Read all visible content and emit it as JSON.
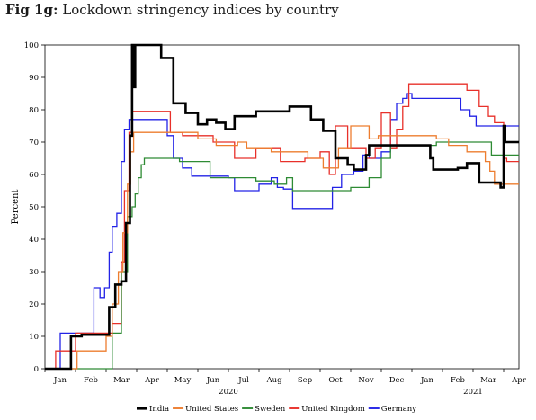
{
  "figure": {
    "label": "Fig 1g:",
    "title": "Lockdown stringency indices by country"
  },
  "chart_data": {
    "type": "line",
    "title": "Lockdown stringency indices by country",
    "xlabel": "",
    "ylabel": "Percent",
    "ylim": [
      0,
      100
    ],
    "yticks": [
      0,
      10,
      20,
      30,
      40,
      50,
      60,
      70,
      80,
      90,
      100
    ],
    "xlim": [
      0,
      15.5
    ],
    "xticks": [
      {
        "label": "Jan",
        "x": 0.5
      },
      {
        "label": "Feb",
        "x": 1.5
      },
      {
        "label": "Mar",
        "x": 2.5
      },
      {
        "label": "Apr",
        "x": 3.5
      },
      {
        "label": "May",
        "x": 4.5
      },
      {
        "label": "Jun",
        "x": 5.5
      },
      {
        "label": "Jul",
        "x": 6.5
      },
      {
        "label": "Aug",
        "x": 7.5
      },
      {
        "label": "Sep",
        "x": 8.5
      },
      {
        "label": "Oct",
        "x": 9.5
      },
      {
        "label": "Nov",
        "x": 10.5
      },
      {
        "label": "Dec",
        "x": 11.5
      },
      {
        "label": "Jan",
        "x": 12.5
      },
      {
        "label": "Feb",
        "x": 13.5
      },
      {
        "label": "Mar",
        "x": 14.5
      },
      {
        "label": "Apr",
        "x": 15.5
      }
    ],
    "year_labels": [
      {
        "label": "2020",
        "x": 6
      },
      {
        "label": "2021",
        "x": 14
      }
    ],
    "grid": false,
    "legend": "bottom",
    "series": [
      {
        "name": "India",
        "color": "#000000",
        "width": 2.6,
        "points": [
          [
            0,
            0
          ],
          [
            0.85,
            0
          ],
          [
            0.85,
            10
          ],
          [
            1.2,
            10
          ],
          [
            1.2,
            10.5
          ],
          [
            2.1,
            10.5
          ],
          [
            2.1,
            19
          ],
          [
            2.3,
            19
          ],
          [
            2.3,
            26
          ],
          [
            2.5,
            26
          ],
          [
            2.5,
            27
          ],
          [
            2.65,
            27
          ],
          [
            2.65,
            45
          ],
          [
            2.78,
            45
          ],
          [
            2.78,
            72
          ],
          [
            2.85,
            72
          ],
          [
            2.85,
            100
          ],
          [
            2.9,
            100
          ],
          [
            2.9,
            87
          ],
          [
            2.95,
            87
          ],
          [
            2.95,
            100
          ],
          [
            3.8,
            100
          ],
          [
            3.8,
            96
          ],
          [
            4.2,
            96
          ],
          [
            4.2,
            82
          ],
          [
            4.6,
            82
          ],
          [
            4.6,
            79
          ],
          [
            5.0,
            79
          ],
          [
            5.0,
            75.5
          ],
          [
            5.3,
            75.5
          ],
          [
            5.3,
            77
          ],
          [
            5.6,
            77
          ],
          [
            5.6,
            76
          ],
          [
            5.9,
            76
          ],
          [
            5.9,
            74
          ],
          [
            6.2,
            74
          ],
          [
            6.2,
            78
          ],
          [
            6.9,
            78
          ],
          [
            6.9,
            79.5
          ],
          [
            8.0,
            79.5
          ],
          [
            8.0,
            81
          ],
          [
            8.7,
            81
          ],
          [
            8.7,
            77
          ],
          [
            9.1,
            77
          ],
          [
            9.1,
            73.5
          ],
          [
            9.5,
            73.5
          ],
          [
            9.5,
            65
          ],
          [
            9.9,
            65
          ],
          [
            9.9,
            63
          ],
          [
            10.1,
            63
          ],
          [
            10.1,
            61.5
          ],
          [
            10.5,
            61.5
          ],
          [
            10.5,
            66
          ],
          [
            10.6,
            66
          ],
          [
            10.6,
            69
          ],
          [
            12.6,
            69
          ],
          [
            12.6,
            65
          ],
          [
            12.7,
            65
          ],
          [
            12.7,
            61.5
          ],
          [
            13.5,
            61.5
          ],
          [
            13.5,
            62
          ],
          [
            13.8,
            62
          ],
          [
            13.8,
            63.5
          ],
          [
            14.2,
            63.5
          ],
          [
            14.2,
            57.5
          ],
          [
            14.9,
            57.5
          ],
          [
            14.9,
            56
          ],
          [
            15.0,
            56
          ],
          [
            15.0,
            75
          ],
          [
            15.05,
            75
          ],
          [
            15.05,
            70
          ],
          [
            15.5,
            70
          ]
        ]
      },
      {
        "name": "United States",
        "color": "#ed7d2f",
        "width": 1.3,
        "points": [
          [
            0,
            0
          ],
          [
            1.05,
            0
          ],
          [
            1.05,
            5.5
          ],
          [
            2.0,
            5.5
          ],
          [
            2.0,
            10
          ],
          [
            2.2,
            10
          ],
          [
            2.2,
            20
          ],
          [
            2.4,
            20
          ],
          [
            2.4,
            30
          ],
          [
            2.55,
            30
          ],
          [
            2.55,
            42
          ],
          [
            2.7,
            42
          ],
          [
            2.7,
            57
          ],
          [
            2.8,
            57
          ],
          [
            2.8,
            67
          ],
          [
            2.9,
            67
          ],
          [
            2.9,
            73
          ],
          [
            5.0,
            73
          ],
          [
            5.0,
            71
          ],
          [
            5.6,
            71
          ],
          [
            5.6,
            69
          ],
          [
            6.3,
            69
          ],
          [
            6.3,
            70
          ],
          [
            6.6,
            70
          ],
          [
            6.6,
            68
          ],
          [
            7.4,
            68
          ],
          [
            7.4,
            67
          ],
          [
            8.6,
            67
          ],
          [
            8.6,
            65
          ],
          [
            9.1,
            65
          ],
          [
            9.1,
            62
          ],
          [
            9.6,
            62
          ],
          [
            9.6,
            68
          ],
          [
            10.0,
            68
          ],
          [
            10.0,
            75
          ],
          [
            10.6,
            75
          ],
          [
            10.6,
            71
          ],
          [
            10.9,
            71
          ],
          [
            10.9,
            72
          ],
          [
            12.8,
            72
          ],
          [
            12.8,
            71
          ],
          [
            13.2,
            71
          ],
          [
            13.2,
            69
          ],
          [
            13.8,
            69
          ],
          [
            13.8,
            67
          ],
          [
            14.4,
            67
          ],
          [
            14.4,
            64
          ],
          [
            14.55,
            64
          ],
          [
            14.55,
            61
          ],
          [
            14.7,
            61
          ],
          [
            14.7,
            57
          ],
          [
            15.5,
            57
          ]
        ]
      },
      {
        "name": "Sweden",
        "color": "#2e8b34",
        "width": 1.3,
        "points": [
          [
            0,
            0
          ],
          [
            2.2,
            0
          ],
          [
            2.2,
            11
          ],
          [
            2.5,
            11
          ],
          [
            2.5,
            30
          ],
          [
            2.7,
            30
          ],
          [
            2.7,
            47
          ],
          [
            2.85,
            47
          ],
          [
            2.85,
            50
          ],
          [
            2.95,
            50
          ],
          [
            2.95,
            54
          ],
          [
            3.05,
            54
          ],
          [
            3.05,
            59
          ],
          [
            3.15,
            59
          ],
          [
            3.15,
            63
          ],
          [
            3.25,
            63
          ],
          [
            3.25,
            65
          ],
          [
            4.4,
            65
          ],
          [
            4.4,
            64
          ],
          [
            5.4,
            64
          ],
          [
            5.4,
            59
          ],
          [
            6.9,
            59
          ],
          [
            6.9,
            58
          ],
          [
            7.5,
            58
          ],
          [
            7.5,
            57
          ],
          [
            7.9,
            57
          ],
          [
            7.9,
            59
          ],
          [
            8.1,
            59
          ],
          [
            8.1,
            55
          ],
          [
            10.0,
            55
          ],
          [
            10.0,
            56
          ],
          [
            10.6,
            56
          ],
          [
            10.6,
            59
          ],
          [
            11.0,
            59
          ],
          [
            11.0,
            65
          ],
          [
            11.3,
            65
          ],
          [
            11.3,
            69
          ],
          [
            12.8,
            69
          ],
          [
            12.8,
            70
          ],
          [
            14.6,
            70
          ],
          [
            14.6,
            66
          ],
          [
            15.5,
            66
          ]
        ]
      },
      {
        "name": "United Kingdom",
        "color": "#e8302a",
        "width": 1.3,
        "points": [
          [
            0,
            0
          ],
          [
            0.35,
            0
          ],
          [
            0.35,
            5.5
          ],
          [
            1.0,
            5.5
          ],
          [
            1.0,
            11
          ],
          [
            2.2,
            11
          ],
          [
            2.2,
            14
          ],
          [
            2.5,
            14
          ],
          [
            2.5,
            33
          ],
          [
            2.6,
            33
          ],
          [
            2.6,
            55
          ],
          [
            2.75,
            55
          ],
          [
            2.75,
            73
          ],
          [
            2.85,
            73
          ],
          [
            2.85,
            79.5
          ],
          [
            4.1,
            79.5
          ],
          [
            4.1,
            73
          ],
          [
            4.5,
            73
          ],
          [
            4.5,
            72
          ],
          [
            5.5,
            72
          ],
          [
            5.5,
            70
          ],
          [
            6.2,
            70
          ],
          [
            6.2,
            65
          ],
          [
            6.9,
            65
          ],
          [
            6.9,
            68
          ],
          [
            7.7,
            68
          ],
          [
            7.7,
            64
          ],
          [
            8.5,
            64
          ],
          [
            8.5,
            65
          ],
          [
            9.0,
            65
          ],
          [
            9.0,
            67
          ],
          [
            9.3,
            67
          ],
          [
            9.3,
            60
          ],
          [
            9.5,
            60
          ],
          [
            9.5,
            75
          ],
          [
            9.9,
            75
          ],
          [
            9.9,
            68
          ],
          [
            10.5,
            68
          ],
          [
            10.5,
            65
          ],
          [
            10.8,
            65
          ],
          [
            10.8,
            68
          ],
          [
            11.0,
            68
          ],
          [
            11.0,
            79
          ],
          [
            11.3,
            79
          ],
          [
            11.3,
            68
          ],
          [
            11.5,
            68
          ],
          [
            11.5,
            74
          ],
          [
            11.7,
            74
          ],
          [
            11.7,
            81
          ],
          [
            11.9,
            81
          ],
          [
            11.9,
            88
          ],
          [
            13.8,
            88
          ],
          [
            13.8,
            86
          ],
          [
            14.2,
            86
          ],
          [
            14.2,
            81
          ],
          [
            14.5,
            81
          ],
          [
            14.5,
            78
          ],
          [
            14.7,
            78
          ],
          [
            14.7,
            76
          ],
          [
            15.0,
            76
          ],
          [
            15.0,
            65
          ],
          [
            15.1,
            65
          ],
          [
            15.1,
            64
          ],
          [
            15.5,
            64
          ]
        ]
      },
      {
        "name": "Germany",
        "color": "#2323e6",
        "width": 1.3,
        "points": [
          [
            0,
            0
          ],
          [
            0.5,
            0
          ],
          [
            0.5,
            11
          ],
          [
            1.6,
            11
          ],
          [
            1.6,
            25
          ],
          [
            1.8,
            25
          ],
          [
            1.8,
            22
          ],
          [
            1.95,
            22
          ],
          [
            1.95,
            25
          ],
          [
            2.1,
            25
          ],
          [
            2.1,
            36
          ],
          [
            2.2,
            36
          ],
          [
            2.2,
            44
          ],
          [
            2.35,
            44
          ],
          [
            2.35,
            48
          ],
          [
            2.5,
            48
          ],
          [
            2.5,
            64
          ],
          [
            2.6,
            64
          ],
          [
            2.6,
            74
          ],
          [
            2.75,
            74
          ],
          [
            2.75,
            77
          ],
          [
            4.0,
            77
          ],
          [
            4.0,
            72
          ],
          [
            4.2,
            72
          ],
          [
            4.2,
            65
          ],
          [
            4.5,
            65
          ],
          [
            4.5,
            62
          ],
          [
            4.8,
            62
          ],
          [
            4.8,
            59.5
          ],
          [
            6.0,
            59.5
          ],
          [
            6.0,
            59
          ],
          [
            6.2,
            59
          ],
          [
            6.2,
            55
          ],
          [
            7.0,
            55
          ],
          [
            7.0,
            57
          ],
          [
            7.4,
            57
          ],
          [
            7.4,
            59
          ],
          [
            7.6,
            59
          ],
          [
            7.6,
            56
          ],
          [
            7.8,
            56
          ],
          [
            7.8,
            55.5
          ],
          [
            8.1,
            55.5
          ],
          [
            8.1,
            49.5
          ],
          [
            9.4,
            49.5
          ],
          [
            9.4,
            56
          ],
          [
            9.7,
            56
          ],
          [
            9.7,
            60
          ],
          [
            10.1,
            60
          ],
          [
            10.1,
            61
          ],
          [
            10.4,
            61
          ],
          [
            10.4,
            66
          ],
          [
            10.6,
            66
          ],
          [
            10.6,
            65
          ],
          [
            11.0,
            65
          ],
          [
            11.0,
            67
          ],
          [
            11.3,
            67
          ],
          [
            11.3,
            77
          ],
          [
            11.5,
            77
          ],
          [
            11.5,
            82
          ],
          [
            11.7,
            82
          ],
          [
            11.7,
            83.5
          ],
          [
            11.85,
            83.5
          ],
          [
            11.85,
            85
          ],
          [
            12.0,
            85
          ],
          [
            12.0,
            83.5
          ],
          [
            13.6,
            83.5
          ],
          [
            13.6,
            80
          ],
          [
            13.9,
            80
          ],
          [
            13.9,
            78
          ],
          [
            14.1,
            78
          ],
          [
            14.1,
            75
          ],
          [
            15.5,
            75
          ]
        ]
      }
    ]
  }
}
